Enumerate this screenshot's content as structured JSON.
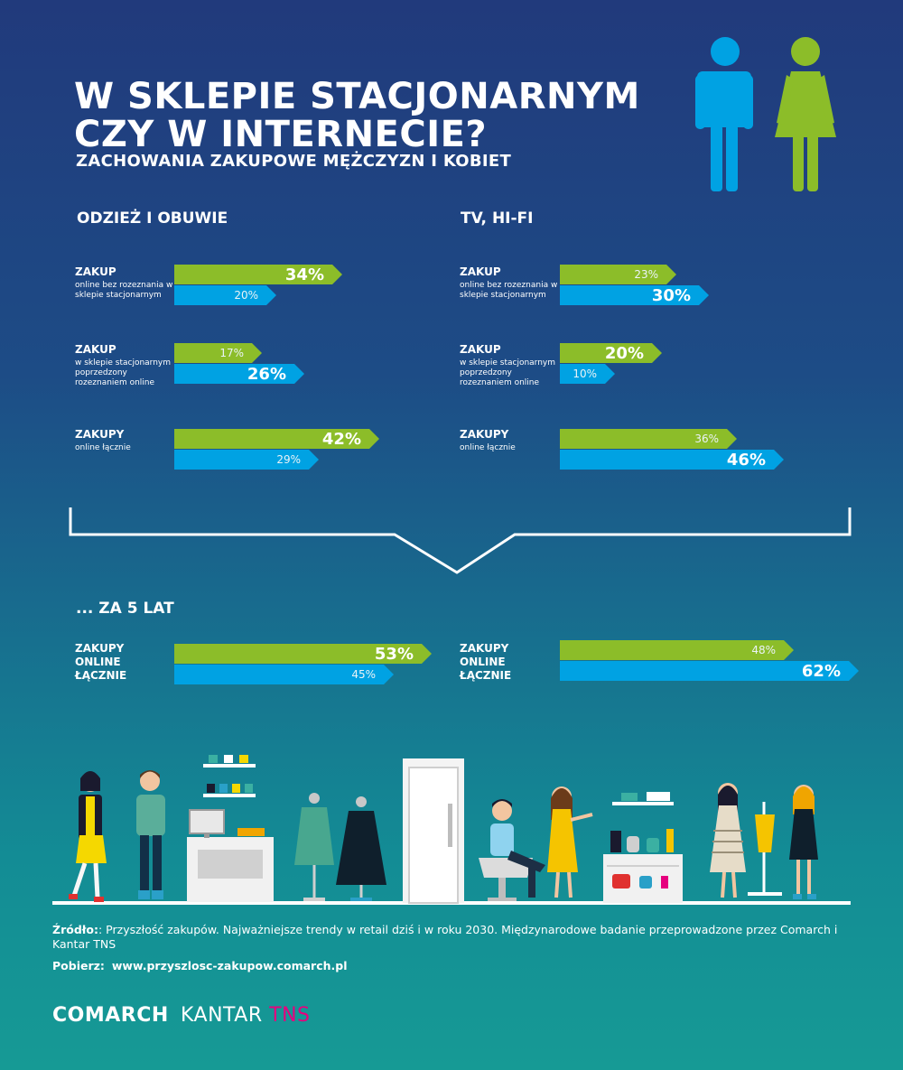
{
  "header": {
    "title_line1": "W SKLEPIE STACJONARNYM",
    "title_line2": "CZY W INTERNECIE?",
    "subtitle": "ZACHOWANIA ZAKUPOWE MĘŻCZYZN I KOBIET"
  },
  "colors": {
    "women": "#8cbd29",
    "men": "#00a2e3",
    "background_top": "#213a7c",
    "background_bottom": "#169a95"
  },
  "icons": [
    "male-figure-icon",
    "female-figure-icon"
  ],
  "sections": {
    "clothing": "ODZIEŻ I OBUWIE",
    "tv": "TV, HI-FI",
    "future": "... ZA 5 LAT"
  },
  "labels": {
    "r1_main": "ZAKUP",
    "r1_sub": "online bez rozeznania w sklepie stacjonarnym",
    "r2_main": "ZAKUP",
    "r2_sub": "w sklepie stacjonarnym poprzedzony rozeznaniem online",
    "r3_main": "ZAKUPY",
    "r3_sub": "online łącznie",
    "future_l1": "ZAKUPY",
    "future_l2": "ONLINE",
    "future_l3": "ŁĄCZNIE"
  },
  "chart_data": [
    {
      "type": "bar",
      "title": "ODZIEŻ I OBUWIE",
      "categories": [
        "ZAKUP online bez rozeznania w sklepie stacjonarnym",
        "ZAKUP w sklepie stacjonarnym poprzedzony rozeznaniem online",
        "ZAKUPY online łącznie"
      ],
      "series": [
        {
          "color": "#8cbd29",
          "values": [
            34,
            17,
            42
          ],
          "labels": [
            "34%",
            "17%",
            "42%"
          ]
        },
        {
          "color": "#00a2e3",
          "values": [
            20,
            26,
            29
          ],
          "labels": [
            "20%",
            "26%",
            "29%"
          ]
        }
      ]
    },
    {
      "type": "bar",
      "title": "TV, HI-FI",
      "categories": [
        "ZAKUP online bez rozeznania w sklepie stacjonarnym",
        "ZAKUP w sklepie stacjonarnym poprzedzony rozeznaniem online",
        "ZAKUPY online łącznie"
      ],
      "series": [
        {
          "color": "#8cbd29",
          "values": [
            23,
            20,
            36
          ],
          "labels": [
            "23%",
            "20%",
            "36%"
          ]
        },
        {
          "color": "#00a2e3",
          "values": [
            30,
            10,
            46
          ],
          "labels": [
            "30%",
            "10%",
            "46%"
          ]
        }
      ]
    },
    {
      "type": "bar",
      "title": "... ZA 5 LAT",
      "categories": [
        "ZAKUPY ONLINE ŁĄCZNIE"
      ],
      "series": [
        {
          "color": "#8cbd29",
          "values": [
            53
          ],
          "labels": [
            "53%"
          ]
        },
        {
          "color": "#00a2e3",
          "values": [
            45
          ],
          "labels": [
            "45%"
          ]
        }
      ]
    },
    {
      "type": "bar",
      "title": "... ZA 5 LAT",
      "categories": [
        "ZAKUPY ONLINE ŁĄCZNIE"
      ],
      "series": [
        {
          "color": "#8cbd29",
          "values": [
            48
          ],
          "labels": [
            "48%"
          ]
        },
        {
          "color": "#00a2e3",
          "values": [
            62
          ],
          "labels": [
            "62%"
          ]
        }
      ]
    }
  ],
  "footer": {
    "source_label": "Źródło:",
    "source_text": ": Przyszłość zakupów. Najważniejsze trendy w retail dziś i w roku 2030. Międzynarodowe badanie przeprowadzone przez Comarch i Kantar TNS",
    "download_label": "Pobierz:",
    "download_url": "www.przyszlosc-zakupow.comarch.pl",
    "logo_comarch": "COMARCH",
    "logo_kantar": "KANTAR",
    "logo_tns": "TNS"
  }
}
